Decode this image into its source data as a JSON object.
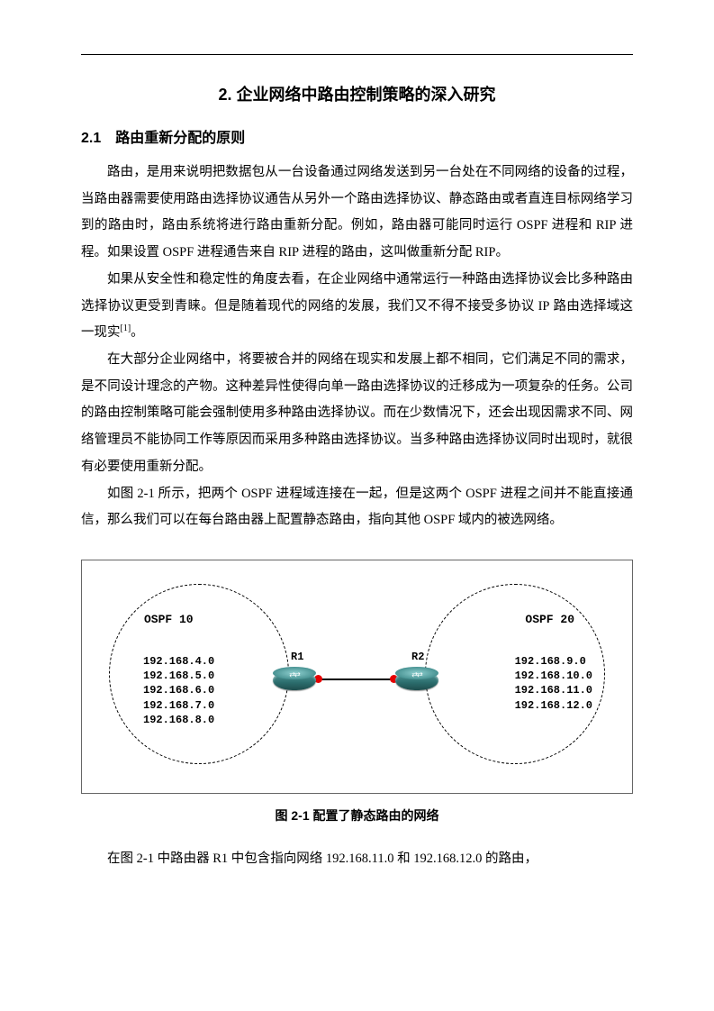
{
  "chapter_title": "2. 企业网络中路由控制策略的深入研究",
  "section_title": "2.1　路由重新分配的原则",
  "paragraphs": {
    "p1_a": "路由，是用来说明把数据包从一台设备通过网络发送到另一台处在不同网络的设备的过程，当路由器需要使用路由选择协议通告从另外一个路由选择协议、静态路由或者直连目标网络学习到的路由时，路由系统将进行路由重新分配。例如，路由器可能同时运行 ",
    "p1_b": " 进程和 ",
    "p1_c": " 进程。如果设置 ",
    "p1_d": " 进程通告来自 ",
    "p1_e": " 进程的路由，这叫做重新分配 ",
    "p1_f": "。",
    "p2_a": "如果从安全性和稳定性的角度去看，在企业网络中通常运行一种路由选择协议会比多种路由选择协议更受到青睐。但是随着现代的网络的发展，我们又不得不接受多协议 ",
    "p2_b": " 路由选择域这一现实",
    "p2_c": "。",
    "p3": "在大部分企业网络中，将要被合并的网络在现实和发展上都不相同，它们满足不同的需求，是不同设计理念的产物。这种差异性使得向单一路由选择协议的迁移成为一项复杂的任务。公司的路由控制策略可能会强制使用多种路由选择协议。而在少数情况下，还会出现因需求不同、网络管理员不能协同工作等原因而采用多种路由选择协议。当多种路由选择协议同时出现时，就很有必要使用重新分配。",
    "p4_a": "如图 2-1 所示，把两个 ",
    "p4_b": " 进程域连接在一起，但是这两个 ",
    "p4_c": " 进程之间并不能直接通信，那么我们可以在每台路由器上配置静态路由，指向其他 ",
    "p4_d": " 域内的被选网络。",
    "p5": "在图 2-1 中路由器 R1 中包含指向网络 192.168.11.0 和 192.168.12.0 的路由，"
  },
  "terms": {
    "ospf": "OSPF",
    "rip": "RIP",
    "ip": "IP"
  },
  "ref1": "[1]",
  "figure": {
    "type": "network-diagram",
    "caption": "图 2-1 配置了静态路由的网络",
    "left_domain": {
      "label": "OSPF 10",
      "networks": [
        "192.168.4.0",
        "192.168.5.0",
        "192.168.6.0",
        "192.168.7.0",
        "192.168.8.0"
      ]
    },
    "right_domain": {
      "label": "OSPF 20",
      "networks": [
        "192.168.9.0",
        "192.168.10.0",
        "192.168.11.0",
        "192.168.12.0"
      ]
    },
    "routers": {
      "r1": "R1",
      "r2": "R2"
    },
    "colors": {
      "border": "#666666",
      "dash": "#000000",
      "router_fill": "#3e8a8a",
      "port": "#e60000",
      "link": "#000000",
      "background": "#ffffff"
    }
  }
}
